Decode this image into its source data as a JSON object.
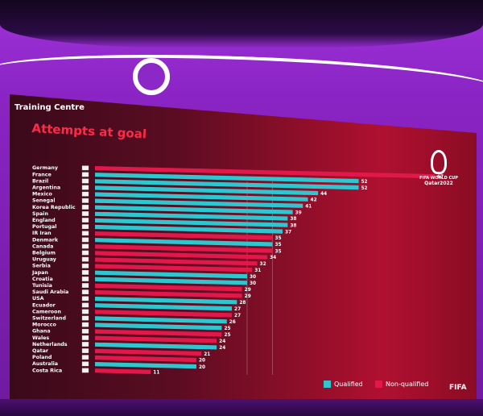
{
  "screen": {
    "section": "Training Centre",
    "title": "Attempts at goal",
    "brand_line1": "FIFA WORLD CUP",
    "brand_line2": "Qatar2022",
    "corner_logo": "FIFA"
  },
  "legend": {
    "qualified": "Qualified",
    "non_qualified": "Non-qualified"
  },
  "colors": {
    "qualified": "#2fc7cf",
    "non_qualified": "#e0194a",
    "background_red": "#b01030",
    "wall_purple": "#8a24c4"
  },
  "chart_data": {
    "type": "bar",
    "orientation": "horizontal",
    "title": "Attempts at goal",
    "categories": [
      "Germany",
      "France",
      "Brazil",
      "Argentina",
      "Mexico",
      "Senegal",
      "Korea Republic",
      "Spain",
      "England",
      "Portugal",
      "IR Iran",
      "Denmark",
      "Canada",
      "Belgium",
      "Uruguay",
      "Serbia",
      "Japan",
      "Croatia",
      "Tunisia",
      "Saudi Arabia",
      "USA",
      "Ecuador",
      "Cameroon",
      "Switzerland",
      "Morocco",
      "Ghana",
      "Wales",
      "Netherlands",
      "Qatar",
      "Poland",
      "Australia",
      "Costa Rica"
    ],
    "values": [
      67,
      52,
      52,
      44,
      42,
      41,
      39,
      38,
      38,
      37,
      35,
      35,
      35,
      34,
      32,
      31,
      30,
      30,
      29,
      29,
      28,
      27,
      27,
      26,
      25,
      25,
      24,
      24,
      21,
      20,
      20,
      11
    ],
    "data_labels": [
      "67",
      "52",
      "52",
      "44",
      "42",
      "41",
      "39",
      "38",
      "38",
      "37",
      "35",
      "35",
      "35",
      "34",
      "32",
      "31",
      "30",
      "30",
      "29",
      "29",
      "28",
      "27",
      "27",
      "26",
      "25",
      "25",
      "24",
      "24",
      "21",
      "20",
      "20",
      "11"
    ],
    "status": [
      "non",
      "qual",
      "qual",
      "qual",
      "qual",
      "qual",
      "qual",
      "qual",
      "qual",
      "qual",
      "non",
      "qual",
      "non",
      "non",
      "non",
      "non",
      "qual",
      "qual",
      "non",
      "non",
      "qual",
      "qual",
      "non",
      "qual",
      "qual",
      "non",
      "non",
      "qual",
      "non",
      "non",
      "qual",
      "non"
    ],
    "xlim": [
      0,
      70
    ]
  }
}
